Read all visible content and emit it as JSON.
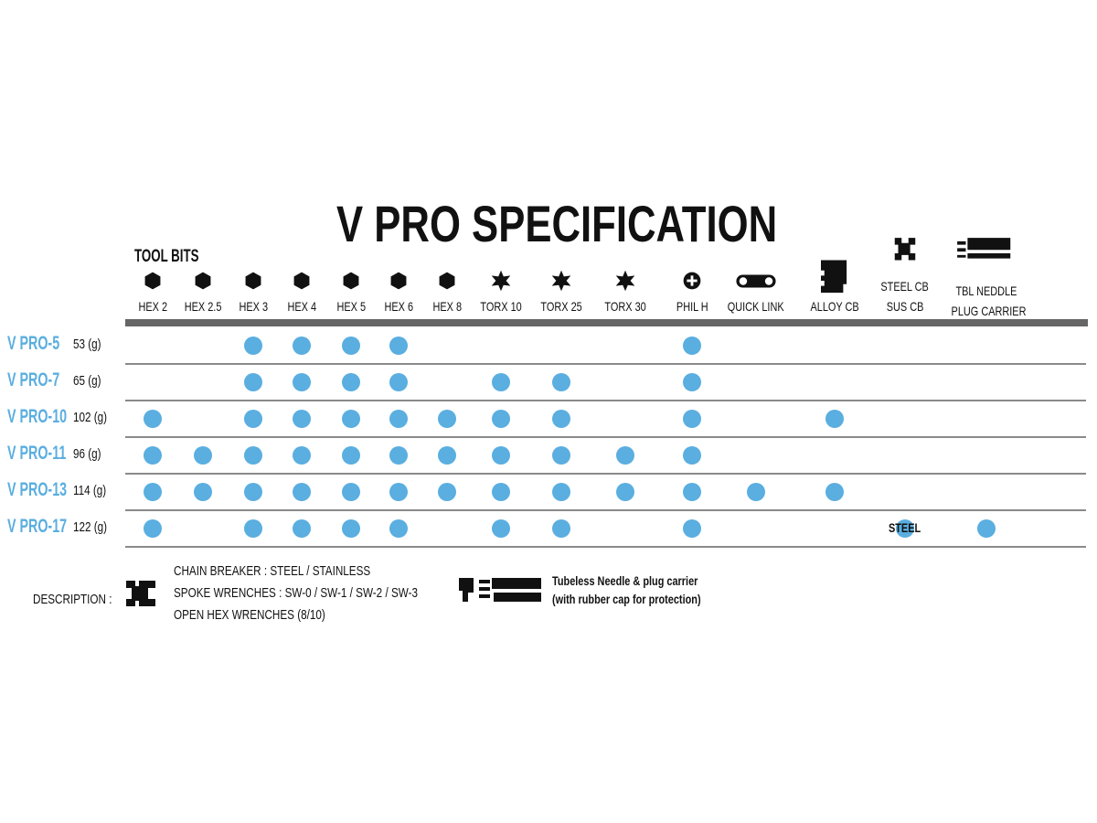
{
  "title": "V PRO SPECIFICATION",
  "tool_bits_label": "TOOL BITS",
  "columns": [
    {
      "label": [
        "HEX 2"
      ],
      "icon": "hexagon-icon"
    },
    {
      "label": [
        "HEX 2.5"
      ],
      "icon": "hexagon-icon"
    },
    {
      "label": [
        "HEX 3"
      ],
      "icon": "hexagon-icon"
    },
    {
      "label": [
        "HEX 4"
      ],
      "icon": "hexagon-icon"
    },
    {
      "label": [
        "HEX 5"
      ],
      "icon": "hexagon-icon"
    },
    {
      "label": [
        "HEX 6"
      ],
      "icon": "hexagon-icon"
    },
    {
      "label": [
        "HEX 8"
      ],
      "icon": "hexagon-icon"
    },
    {
      "label": [
        "TORX 10"
      ],
      "icon": "torx-star-icon"
    },
    {
      "label": [
        "TORX 25"
      ],
      "icon": "torx-star-icon"
    },
    {
      "label": [
        "TORX 30"
      ],
      "icon": "torx-star-icon"
    },
    {
      "label": [
        "PHIL H"
      ],
      "icon": "phillips-icon"
    },
    {
      "label": [
        "QUICK LINK"
      ],
      "icon": "quick-link-icon"
    },
    {
      "label": [
        "ALLOY CB"
      ],
      "icon": "alloy-chain-breaker-icon"
    },
    {
      "label": [
        "STEEL CB",
        "SUS CB"
      ],
      "icon": "steel-chain-breaker-icon"
    },
    {
      "label": [
        "TBL NEDDLE",
        "PLUG CARRIER"
      ],
      "icon": "tubeless-plug-carrier-icon"
    }
  ],
  "rows": [
    {
      "model": "V PRO-5",
      "weight": "53 (g)",
      "has": [
        0,
        0,
        1,
        1,
        1,
        1,
        0,
        0,
        0,
        0,
        1,
        0,
        0,
        0,
        0
      ]
    },
    {
      "model": "V PRO-7",
      "weight": "65 (g)",
      "has": [
        0,
        0,
        1,
        1,
        1,
        1,
        0,
        1,
        1,
        0,
        1,
        0,
        0,
        0,
        0
      ]
    },
    {
      "model": "V PRO-10",
      "weight": "102 (g)",
      "has": [
        1,
        0,
        1,
        1,
        1,
        1,
        1,
        1,
        1,
        0,
        1,
        0,
        1,
        0,
        0
      ]
    },
    {
      "model": "V PRO-11",
      "weight": "96 (g)",
      "has": [
        1,
        1,
        1,
        1,
        1,
        1,
        1,
        1,
        1,
        1,
        1,
        0,
        0,
        0,
        0
      ]
    },
    {
      "model": "V PRO-13",
      "weight": "114 (g)",
      "has": [
        1,
        1,
        1,
        1,
        1,
        1,
        1,
        1,
        1,
        1,
        1,
        1,
        1,
        0,
        0
      ]
    },
    {
      "model": "V PRO-17",
      "weight": "122 (g)",
      "has": [
        1,
        0,
        1,
        1,
        1,
        1,
        0,
        1,
        1,
        0,
        1,
        0,
        0,
        1,
        1
      ],
      "notes": {
        "13": "STEEL"
      }
    }
  ],
  "description": {
    "label": "DESCRIPTION :",
    "chain_breaker_lines": [
      "CHAIN BREAKER : STEEL / STAINLESS",
      "SPOKE WRENCHES : SW-0 / SW-1 / SW-2 / SW-3",
      "OPEN HEX WRENCHES (8/10)"
    ],
    "plug_carrier_lines": [
      "Tubeless Needle & plug carrier",
      "(with rubber cap for protection)"
    ]
  },
  "colors": {
    "dot": "#5aaee0",
    "model_text": "#5aaee0",
    "header_bar": "#666666"
  }
}
